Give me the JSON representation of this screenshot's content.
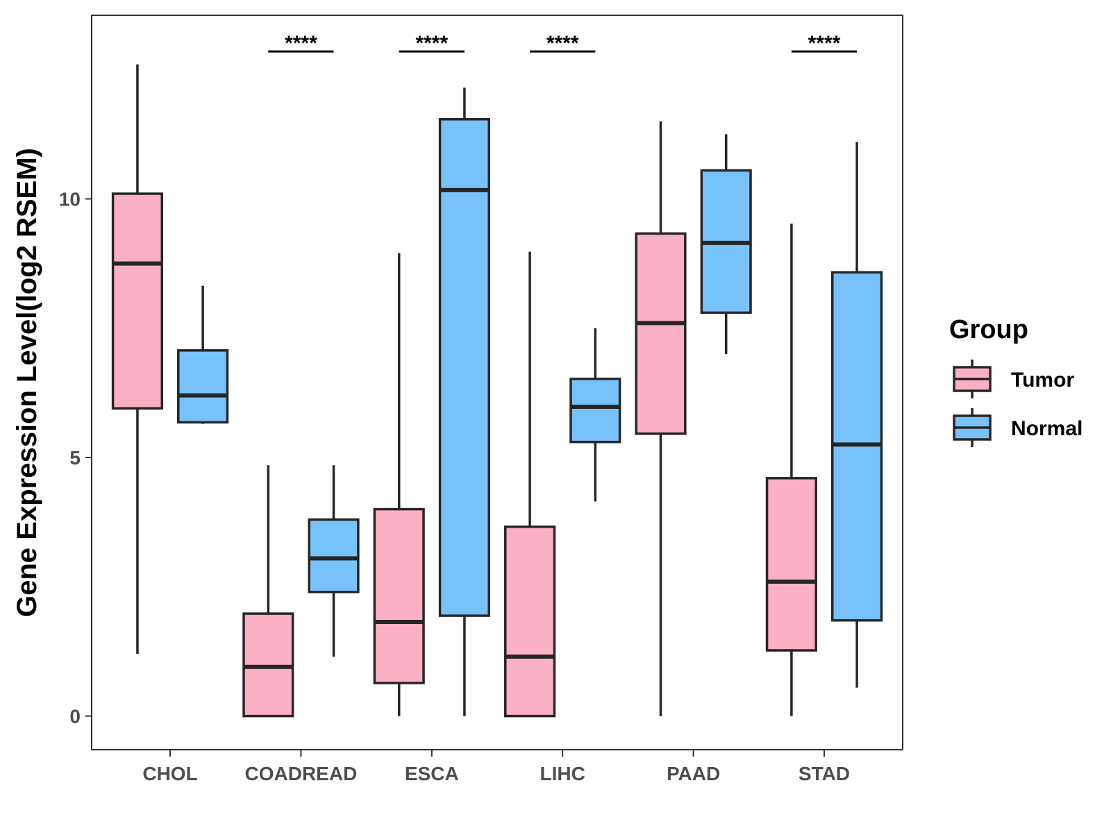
{
  "chart_data": {
    "type": "boxplot",
    "title": "",
    "xlabel": "",
    "ylabel": "Gene Expression Level(log2 RSEM)",
    "ylim": [
      -0.65,
      13.55
    ],
    "yticks": [
      0,
      5,
      10
    ],
    "categories": [
      "CHOL",
      "COADREAD",
      "ESCA",
      "LIHC",
      "PAAD",
      "STAD"
    ],
    "legend": {
      "title": "Group",
      "position": "right"
    },
    "series": [
      {
        "name": "Tumor",
        "color": "#fbb0c3",
        "boxes": [
          {
            "category": "CHOL",
            "min": 1.2,
            "q1": 5.95,
            "median": 8.75,
            "q3": 10.1,
            "max": 12.6
          },
          {
            "category": "COADREAD",
            "min": 0.0,
            "q1": 0.0,
            "median": 0.95,
            "q3": 1.98,
            "max": 4.85
          },
          {
            "category": "ESCA",
            "min": 0.0,
            "q1": 0.64,
            "median": 1.82,
            "q3": 4.0,
            "max": 8.95
          },
          {
            "category": "LIHC",
            "min": 0.0,
            "q1": 0.0,
            "median": 1.15,
            "q3": 3.66,
            "max": 8.98
          },
          {
            "category": "PAAD",
            "min": 0.0,
            "q1": 5.46,
            "median": 7.6,
            "q3": 9.33,
            "max": 11.5
          },
          {
            "category": "STAD",
            "min": 0.0,
            "q1": 1.27,
            "median": 2.6,
            "q3": 4.6,
            "max": 9.52
          }
        ]
      },
      {
        "name": "Normal",
        "color": "#77c2fa",
        "boxes": [
          {
            "category": "CHOL",
            "min": 5.65,
            "q1": 5.68,
            "median": 6.2,
            "q3": 7.07,
            "max": 8.32
          },
          {
            "category": "COADREAD",
            "min": 1.15,
            "q1": 2.4,
            "median": 3.05,
            "q3": 3.8,
            "max": 4.85
          },
          {
            "category": "ESCA",
            "min": 0.0,
            "q1": 1.94,
            "median": 10.17,
            "q3": 11.54,
            "max": 12.15
          },
          {
            "category": "LIHC",
            "min": 4.15,
            "q1": 5.3,
            "median": 5.98,
            "q3": 6.52,
            "max": 7.5
          },
          {
            "category": "PAAD",
            "min": 7.0,
            "q1": 7.8,
            "median": 9.15,
            "q3": 10.55,
            "max": 11.25
          },
          {
            "category": "STAD",
            "min": 0.55,
            "q1": 1.85,
            "median": 5.25,
            "q3": 8.58,
            "max": 11.1
          }
        ]
      }
    ],
    "annotations": [
      {
        "category": "COADREAD",
        "text": "****",
        "y": 12.85
      },
      {
        "category": "ESCA",
        "text": "****",
        "y": 12.85
      },
      {
        "category": "LIHC",
        "text": "****",
        "y": 12.85
      },
      {
        "category": "STAD",
        "text": "****",
        "y": 12.85
      }
    ]
  }
}
